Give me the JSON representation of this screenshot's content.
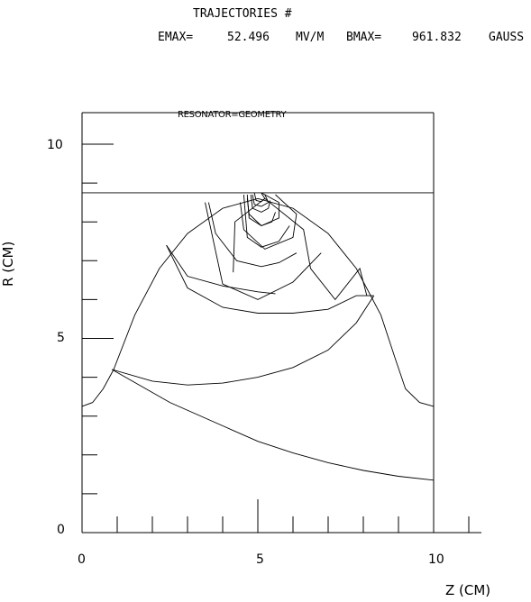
{
  "header": {
    "line1": "TRAJECTORIES #",
    "emax_label": "EMAX=",
    "emax_value": "52.496",
    "emax_unit": "MV/M",
    "bmax_label": "BMAX=",
    "bmax_value": "961.832",
    "bmax_unit": "GAUSS"
  },
  "chart_data": {
    "type": "line",
    "title": "RESONATOR=GEOMETRY",
    "xlabel": "Z (CM)",
    "ylabel": "R (CM)",
    "xlim": [
      0,
      11
    ],
    "ylim": [
      0,
      10.5
    ],
    "x_ticks": [
      "0",
      "5",
      "10"
    ],
    "y_ticks": [
      "0",
      "5",
      "10"
    ],
    "series": [
      {
        "role": "beam-pipe-line",
        "points": [
          [
            0,
            8.75
          ],
          [
            10,
            8.75
          ]
        ]
      },
      {
        "role": "cavity-wall",
        "points": [
          [
            0,
            3.25
          ],
          [
            0.3,
            3.35
          ],
          [
            0.6,
            3.7
          ],
          [
            0.9,
            4.2
          ],
          [
            1.5,
            5.6
          ],
          [
            2.2,
            6.8
          ],
          [
            3,
            7.7
          ],
          [
            4,
            8.35
          ],
          [
            5,
            8.6
          ],
          [
            6,
            8.35
          ],
          [
            7,
            7.7
          ],
          [
            7.8,
            6.8
          ],
          [
            8.5,
            5.6
          ],
          [
            8.9,
            4.5
          ],
          [
            9.2,
            3.7
          ],
          [
            9.6,
            3.35
          ],
          [
            10,
            3.25
          ]
        ]
      },
      {
        "role": "axis-boundary",
        "points": [
          [
            0.85,
            4.2
          ],
          [
            2.5,
            3.35
          ],
          [
            4,
            2.75
          ],
          [
            5,
            2.35
          ],
          [
            6,
            2.05
          ],
          [
            7,
            1.8
          ],
          [
            8,
            1.6
          ],
          [
            9,
            1.45
          ],
          [
            10,
            1.35
          ]
        ]
      },
      {
        "role": "field-line",
        "points": [
          [
            0.85,
            4.2
          ],
          [
            2,
            3.9
          ],
          [
            3,
            3.8
          ],
          [
            4,
            3.85
          ],
          [
            5,
            4.0
          ],
          [
            6,
            4.25
          ],
          [
            7,
            4.7
          ],
          [
            7.8,
            5.4
          ],
          [
            8.3,
            6.1
          ]
        ]
      },
      {
        "role": "field-line",
        "points": [
          [
            2.4,
            7.4
          ],
          [
            3,
            6.3
          ],
          [
            4,
            5.8
          ],
          [
            5,
            5.65
          ],
          [
            6,
            5.65
          ],
          [
            7,
            5.75
          ],
          [
            7.8,
            6.1
          ],
          [
            8.3,
            6.1
          ]
        ]
      },
      {
        "role": "field-line",
        "points": [
          [
            2.4,
            7.4
          ],
          [
            3,
            6.6
          ],
          [
            4,
            6.35
          ],
          [
            5,
            6.2
          ],
          [
            5.5,
            6.15
          ]
        ]
      },
      {
        "role": "field-line",
        "points": [
          [
            3.6,
            8.5
          ],
          [
            3.8,
            7.7
          ],
          [
            4.4,
            7.0
          ],
          [
            5.1,
            6.85
          ],
          [
            5.6,
            6.95
          ],
          [
            6.1,
            7.2
          ]
        ]
      },
      {
        "role": "field-line",
        "points": [
          [
            3.5,
            8.5
          ],
          [
            4,
            6.4
          ],
          [
            5,
            6.0
          ],
          [
            6,
            6.45
          ],
          [
            6.8,
            7.2
          ]
        ]
      },
      {
        "role": "field-line",
        "points": [
          [
            4.6,
            8.7
          ],
          [
            4.7,
            7.6
          ],
          [
            5.1,
            7.35
          ],
          [
            5.6,
            7.5
          ],
          [
            5.9,
            7.9
          ]
        ]
      },
      {
        "role": "field-line",
        "points": [
          [
            4.7,
            8.7
          ],
          [
            4.75,
            8.1
          ],
          [
            5.1,
            7.9
          ],
          [
            5.4,
            8.0
          ],
          [
            5.5,
            8.25
          ]
        ]
      },
      {
        "role": "field-line",
        "points": [
          [
            4.8,
            8.7
          ],
          [
            4.85,
            8.35
          ],
          [
            5.1,
            8.25
          ],
          [
            5.3,
            8.35
          ],
          [
            5.35,
            8.55
          ]
        ]
      },
      {
        "role": "trajectory",
        "points": [
          [
            4.3,
            6.7
          ],
          [
            4.35,
            8.0
          ],
          [
            5.2,
            8.6
          ],
          [
            6.3,
            7.8
          ],
          [
            6.5,
            6.8
          ],
          [
            7.2,
            6.0
          ],
          [
            7.9,
            6.8
          ],
          [
            8.1,
            6.1
          ]
        ]
      },
      {
        "role": "trajectory",
        "points": [
          [
            4.5,
            8.5
          ],
          [
            4.6,
            7.8
          ],
          [
            5.2,
            7.3
          ],
          [
            6.0,
            7.6
          ],
          [
            6.1,
            8.2
          ],
          [
            5.5,
            8.7
          ]
        ]
      },
      {
        "role": "trajectory",
        "points": [
          [
            4.7,
            8.6
          ],
          [
            4.75,
            8.2
          ],
          [
            5.1,
            7.9
          ],
          [
            5.6,
            8.1
          ],
          [
            5.6,
            8.5
          ],
          [
            5.1,
            8.75
          ]
        ]
      },
      {
        "role": "trajectory",
        "points": [
          [
            4.85,
            8.7
          ],
          [
            4.9,
            8.45
          ],
          [
            5.1,
            8.4
          ],
          [
            5.3,
            8.5
          ],
          [
            5.2,
            8.7
          ]
        ]
      },
      {
        "role": "trajectory",
        "points": [
          [
            4.9,
            8.75
          ],
          [
            4.95,
            8.55
          ],
          [
            5.1,
            8.52
          ],
          [
            5.2,
            8.6
          ],
          [
            5.1,
            8.74
          ]
        ]
      }
    ]
  }
}
